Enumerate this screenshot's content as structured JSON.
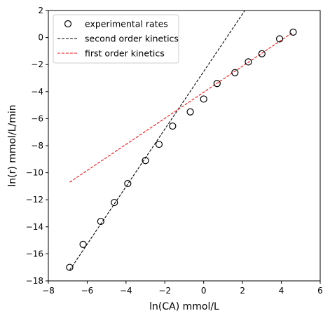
{
  "chart_data": {
    "type": "scatter",
    "xlabel": "ln(CA) mmol/L",
    "ylabel": "ln(r) mmol/L/min",
    "xlim": [
      -8,
      6
    ],
    "ylim": [
      -18,
      2
    ],
    "xticks": [
      -8,
      -6,
      -4,
      -2,
      0,
      2,
      4,
      6
    ],
    "yticks": [
      -18,
      -16,
      -14,
      -12,
      -10,
      -8,
      -6,
      -4,
      -2,
      0,
      2
    ],
    "grid": false,
    "legend_position": "top-left",
    "legend": [
      "experimental rates",
      "second order kinetics",
      "first order kinetics"
    ],
    "series": [
      {
        "name": "experimental rates",
        "style": "open-circle",
        "color": "#000000",
        "x": [
          -6.9,
          -6.21,
          -5.3,
          -4.6,
          -3.91,
          -3.0,
          -2.3,
          -1.6,
          -0.69,
          0.0,
          0.69,
          1.61,
          2.3,
          3.0,
          3.91,
          4.61
        ],
        "y": [
          -17.0,
          -15.3,
          -13.6,
          -12.2,
          -10.8,
          -9.1,
          -7.9,
          -6.55,
          -5.5,
          -4.55,
          -3.4,
          -2.6,
          -1.8,
          -1.2,
          -0.1,
          0.4
        ]
      },
      {
        "name": "second order kinetics",
        "style": "dashed-line",
        "color": "#000000",
        "x": [
          -6.9,
          2.12
        ],
        "y": [
          -17.2,
          2.0
        ]
      },
      {
        "name": "first order kinetics",
        "style": "dashed-line",
        "color": "#ff0000",
        "x": [
          -6.9,
          4.61
        ],
        "y": [
          -10.7,
          0.4
        ]
      }
    ]
  }
}
